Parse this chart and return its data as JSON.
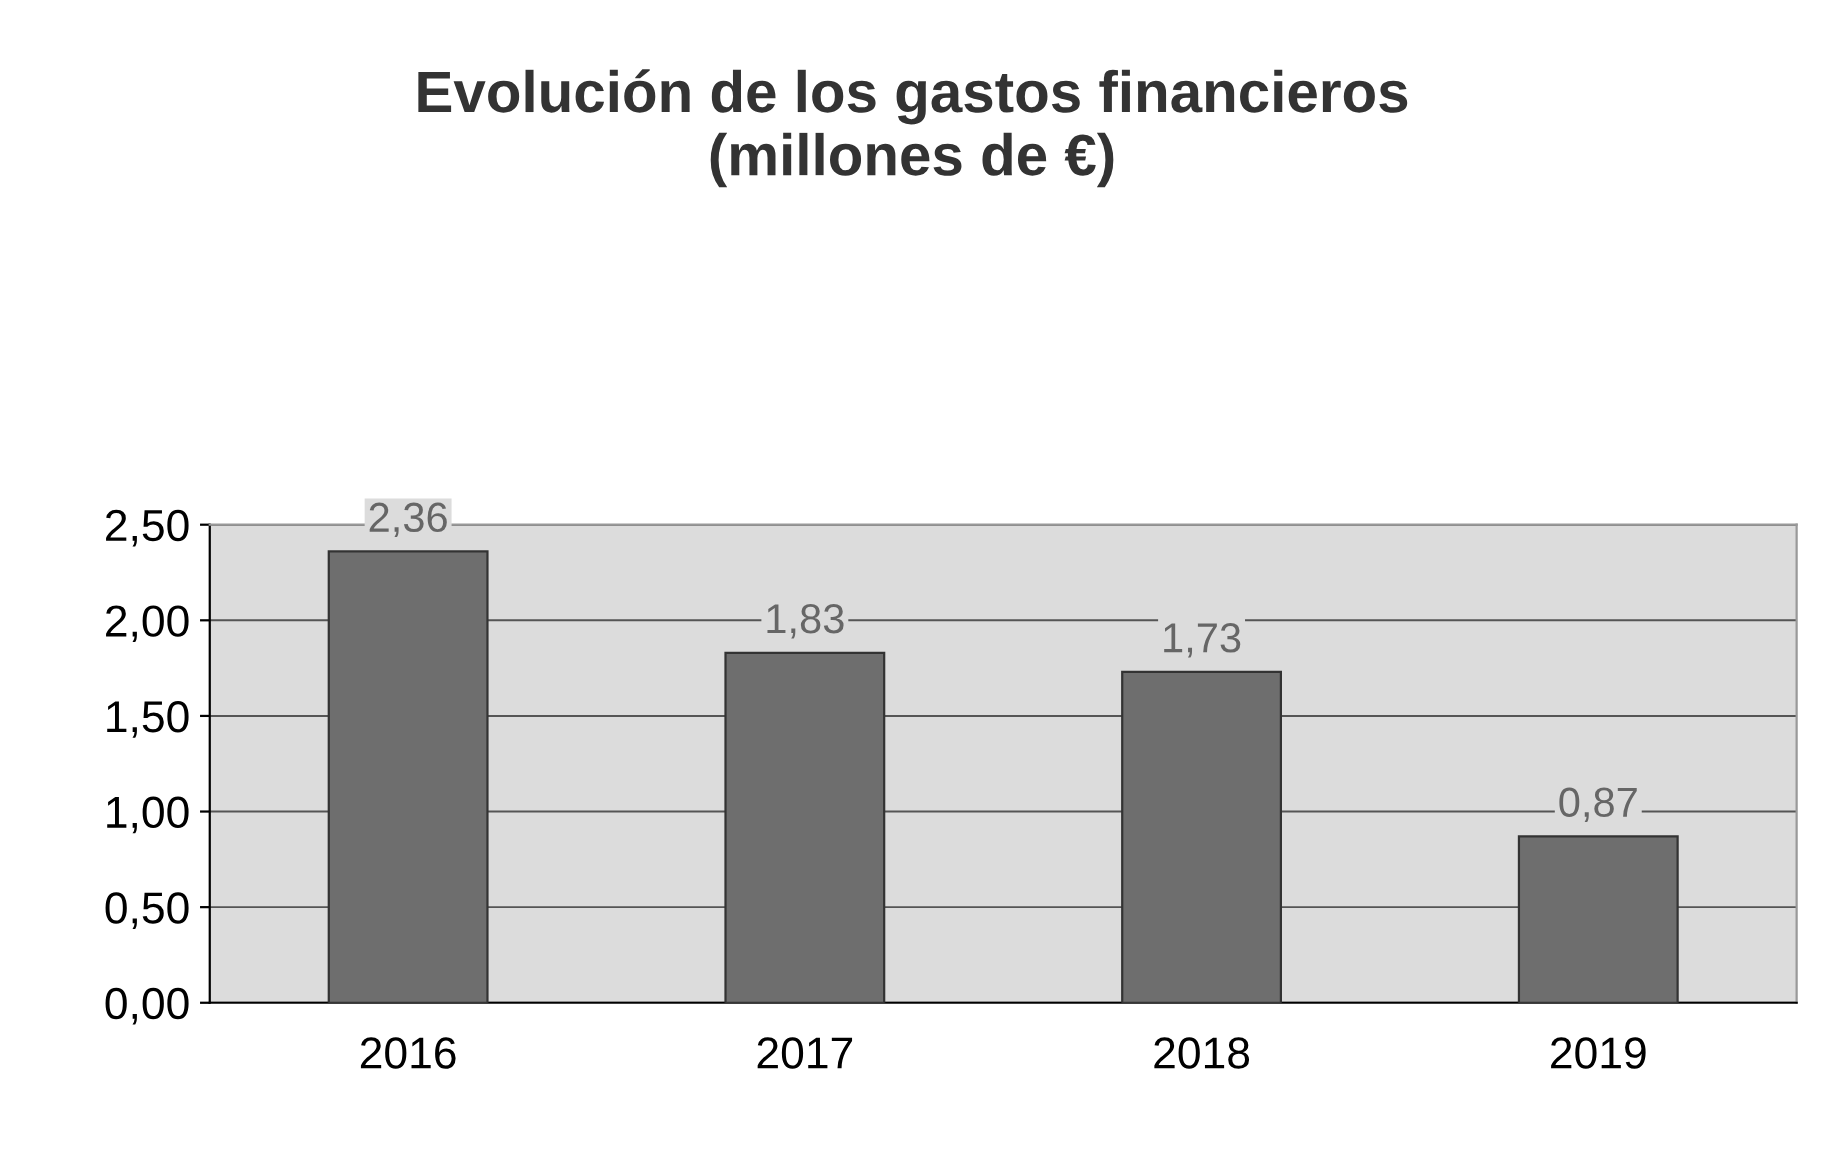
{
  "chart_data": {
    "type": "bar",
    "title": "Evolución de los gastos financieros\n(millones de €)",
    "categories": [
      "2016",
      "2017",
      "2018",
      "2019"
    ],
    "values": [
      2.36,
      1.83,
      1.73,
      0.87
    ],
    "value_labels": [
      "2,36",
      "1,83",
      "1,73",
      "0,87"
    ],
    "color": "#6e6e6e",
    "ylim": [
      0,
      2.5
    ],
    "yticks": [
      {
        "value": 0,
        "label": "0,00"
      },
      {
        "value": 0.5,
        "label": "0,50"
      },
      {
        "value": 1.0,
        "label": "1,00"
      },
      {
        "value": 1.5,
        "label": "1,50"
      },
      {
        "value": 2.0,
        "label": "2,00"
      },
      {
        "value": 2.5,
        "label": "2,50"
      }
    ],
    "grid": "y"
  }
}
